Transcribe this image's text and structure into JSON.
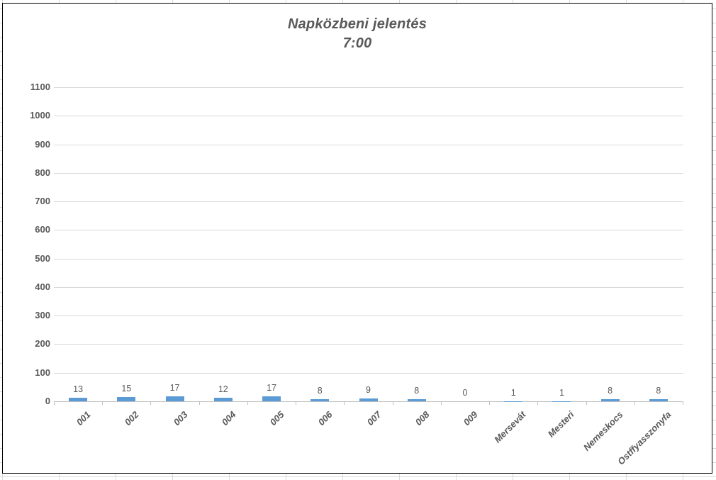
{
  "chart_data": {
    "type": "bar",
    "title": "Napközbeni jelentés",
    "subtitle": "7:00",
    "categories": [
      "001",
      "002",
      "003",
      "004",
      "005",
      "006",
      "007",
      "008",
      "009",
      "Mersevát",
      "Mesteri",
      "Nemeskocs",
      "Ostffyasszonyfa"
    ],
    "values": [
      13,
      15,
      17,
      12,
      17,
      8,
      9,
      8,
      0,
      1,
      1,
      8,
      8
    ],
    "data_labels": [
      13,
      15,
      17,
      12,
      17,
      8,
      9,
      8,
      0,
      1,
      1,
      8,
      8
    ],
    "yticks": [
      0,
      100,
      200,
      300,
      400,
      500,
      600,
      700,
      800,
      900,
      1000,
      1100
    ],
    "ylim": [
      0,
      1100
    ],
    "xlabel": "",
    "ylabel": "",
    "legend": "none",
    "grid": "horizontal",
    "bar_color": "#5b9bd5",
    "text_color": "#595959",
    "gridline_color": "#d9d9d9",
    "axis_color": "#bfbfbf",
    "chart_border_color": "#000000"
  }
}
